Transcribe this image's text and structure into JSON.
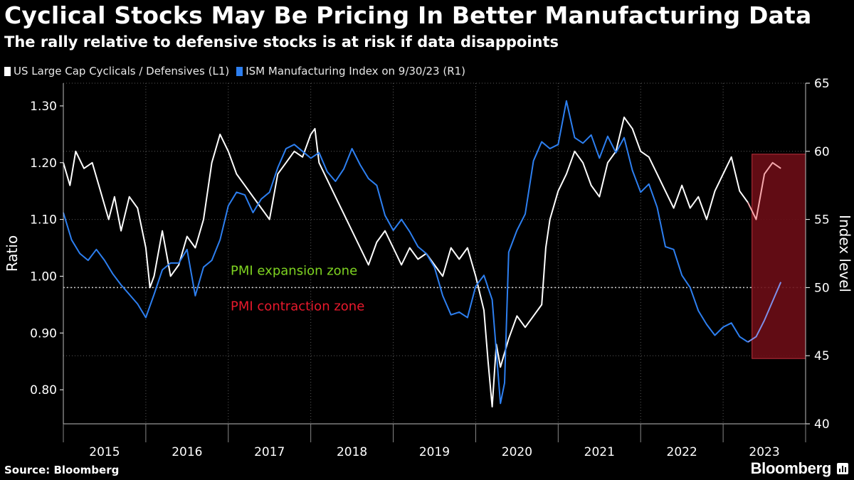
{
  "chart_data": {
    "type": "line",
    "title": "Cyclical Stocks May Be Pricing In Better Manufacturing Data",
    "subtitle": "The rally relative to defensive stocks is at risk if data disappoints",
    "legend": [
      {
        "label": "US Large Cap Cyclicals / Defensives (L1)",
        "color": "#ffffff"
      },
      {
        "label": "ISM Manufacturing Index on 9/30/23 (R1)",
        "color": "#2d7ff0"
      }
    ],
    "left_axis": {
      "label": "Ratio",
      "range": [
        0.74,
        1.34
      ],
      "ticks": [
        "0.80",
        "0.90",
        "1.00",
        "1.10",
        "1.20",
        "1.30"
      ]
    },
    "right_axis": {
      "label": "Index level",
      "range": [
        40,
        65
      ],
      "ticks": [
        "40",
        "45",
        "50",
        "55",
        "60",
        "65"
      ]
    },
    "x_axis": {
      "range": [
        2015.0,
        2024.0
      ],
      "tick_labels": [
        "2015",
        "2016",
        "2017",
        "2018",
        "2019",
        "2020",
        "2021",
        "2022",
        "2023"
      ]
    },
    "series": [
      {
        "name": "US Large Cap Cyclicals / Defensives (L1)",
        "axis": "left",
        "color": "#ffffff",
        "x": [
          2015.0,
          2015.08,
          2015.15,
          2015.25,
          2015.35,
          2015.45,
          2015.55,
          2015.62,
          2015.7,
          2015.8,
          2015.9,
          2016.0,
          2016.05,
          2016.1,
          2016.2,
          2016.3,
          2016.4,
          2016.5,
          2016.6,
          2016.7,
          2016.8,
          2016.9,
          2017.0,
          2017.1,
          2017.2,
          2017.3,
          2017.4,
          2017.5,
          2017.6,
          2017.7,
          2017.8,
          2017.9,
          2018.0,
          2018.05,
          2018.1,
          2018.2,
          2018.3,
          2018.4,
          2018.5,
          2018.6,
          2018.7,
          2018.8,
          2018.9,
          2019.0,
          2019.1,
          2019.2,
          2019.3,
          2019.4,
          2019.5,
          2019.6,
          2019.7,
          2019.8,
          2019.9,
          2020.0,
          2020.1,
          2020.15,
          2020.2,
          2020.25,
          2020.3,
          2020.4,
          2020.5,
          2020.6,
          2020.7,
          2020.8,
          2020.85,
          2020.9,
          2021.0,
          2021.1,
          2021.2,
          2021.3,
          2021.4,
          2021.5,
          2021.6,
          2021.7,
          2021.8,
          2021.9,
          2022.0,
          2022.1,
          2022.2,
          2022.3,
          2022.4,
          2022.5,
          2022.6,
          2022.7,
          2022.8,
          2022.9,
          2023.0,
          2023.1,
          2023.2,
          2023.3,
          2023.4,
          2023.5,
          2023.6,
          2023.7
        ],
        "y": [
          1.2,
          1.16,
          1.22,
          1.19,
          1.2,
          1.15,
          1.1,
          1.14,
          1.08,
          1.14,
          1.12,
          1.05,
          0.98,
          1.0,
          1.08,
          1.0,
          1.02,
          1.07,
          1.05,
          1.1,
          1.2,
          1.25,
          1.22,
          1.18,
          1.16,
          1.14,
          1.12,
          1.1,
          1.18,
          1.2,
          1.22,
          1.21,
          1.25,
          1.26,
          1.2,
          1.17,
          1.14,
          1.11,
          1.08,
          1.05,
          1.02,
          1.06,
          1.08,
          1.05,
          1.02,
          1.05,
          1.03,
          1.04,
          1.02,
          1.0,
          1.05,
          1.03,
          1.05,
          1.0,
          0.94,
          0.85,
          0.77,
          0.88,
          0.84,
          0.89,
          0.93,
          0.91,
          0.93,
          0.95,
          1.05,
          1.1,
          1.15,
          1.18,
          1.22,
          1.2,
          1.16,
          1.14,
          1.2,
          1.22,
          1.28,
          1.26,
          1.22,
          1.21,
          1.18,
          1.15,
          1.12,
          1.16,
          1.12,
          1.14,
          1.1,
          1.15,
          1.18,
          1.21,
          1.15,
          1.13,
          1.1,
          1.18,
          1.2,
          1.19
        ]
      },
      {
        "name": "ISM Manufacturing Index on 9/30/23 (R1)",
        "axis": "right",
        "color": "#2d7ff0",
        "x": [
          2015.0,
          2015.1,
          2015.2,
          2015.3,
          2015.4,
          2015.5,
          2015.6,
          2015.7,
          2015.8,
          2015.9,
          2016.0,
          2016.1,
          2016.2,
          2016.3,
          2016.4,
          2016.5,
          2016.6,
          2016.7,
          2016.8,
          2016.9,
          2017.0,
          2017.1,
          2017.2,
          2017.3,
          2017.4,
          2017.5,
          2017.6,
          2017.7,
          2017.8,
          2017.9,
          2018.0,
          2018.1,
          2018.2,
          2018.3,
          2018.4,
          2018.5,
          2018.6,
          2018.7,
          2018.8,
          2018.9,
          2019.0,
          2019.1,
          2019.2,
          2019.3,
          2019.4,
          2019.5,
          2019.6,
          2019.7,
          2019.8,
          2019.9,
          2020.0,
          2020.1,
          2020.2,
          2020.3,
          2020.35,
          2020.4,
          2020.5,
          2020.6,
          2020.7,
          2020.8,
          2020.9,
          2021.0,
          2021.1,
          2021.2,
          2021.3,
          2021.4,
          2021.5,
          2021.6,
          2021.7,
          2021.8,
          2021.9,
          2022.0,
          2022.1,
          2022.2,
          2022.3,
          2022.4,
          2022.5,
          2022.6,
          2022.7,
          2022.8,
          2022.9,
          2023.0,
          2023.1,
          2023.2,
          2023.3,
          2023.4,
          2023.5,
          2023.6,
          2023.7
        ],
        "y": [
          55.5,
          53.5,
          52.5,
          52.0,
          52.8,
          52.0,
          51.0,
          50.2,
          49.5,
          48.8,
          47.8,
          49.5,
          51.3,
          51.8,
          51.8,
          52.8,
          49.4,
          51.5,
          52.0,
          53.5,
          56.0,
          57.0,
          56.8,
          55.5,
          56.5,
          57.0,
          58.8,
          60.2,
          60.5,
          60.0,
          59.5,
          59.9,
          58.5,
          57.8,
          58.7,
          60.2,
          59.0,
          58.0,
          57.5,
          55.3,
          54.2,
          55.0,
          54.1,
          53.0,
          52.5,
          51.5,
          49.4,
          48.0,
          48.2,
          47.8,
          50.1,
          50.9,
          49.1,
          41.5,
          43.0,
          52.6,
          54.2,
          55.4,
          59.3,
          60.7,
          60.2,
          60.5,
          63.7,
          61.0,
          60.6,
          61.2,
          59.5,
          61.1,
          59.9,
          61.0,
          58.6,
          57.0,
          57.6,
          55.9,
          53.0,
          52.8,
          50.9,
          50.0,
          48.3,
          47.3,
          46.5,
          47.1,
          47.4,
          46.4,
          46.0,
          46.4,
          47.6,
          49.0,
          50.4
        ]
      }
    ],
    "reference_line": {
      "axis": "right",
      "value": 50,
      "style": "dotted"
    },
    "zone_labels": [
      {
        "text": "PMI expansion zone",
        "color": "#7ed321"
      },
      {
        "text": "PMI contraction zone",
        "color": "#e8192c"
      }
    ],
    "highlight": {
      "x_range": [
        2023.35,
        2024.0
      ],
      "left_y_range": [
        0.855,
        1.215
      ],
      "color": "#6b0d16"
    },
    "grid": true,
    "legend_placement": "top-left",
    "source": "Source: Bloomberg",
    "brand": "Bloomberg"
  }
}
